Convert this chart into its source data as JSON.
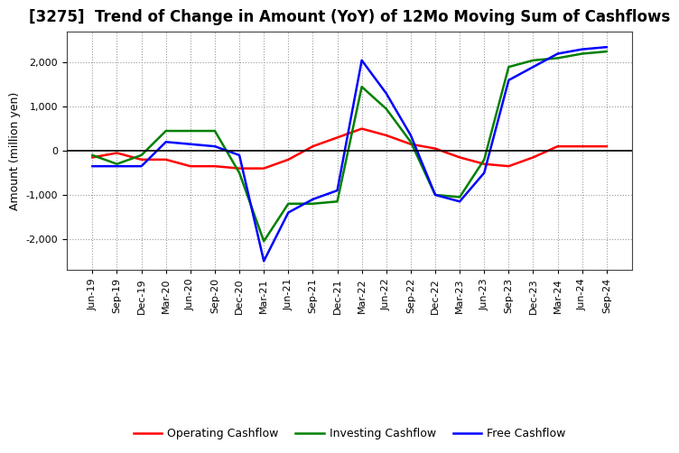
{
  "title": "[3275]  Trend of Change in Amount (YoY) of 12Mo Moving Sum of Cashflows",
  "ylabel": "Amount (million yen)",
  "x_labels": [
    "Jun-19",
    "Sep-19",
    "Dec-19",
    "Mar-20",
    "Jun-20",
    "Sep-20",
    "Dec-20",
    "Mar-21",
    "Jun-21",
    "Sep-21",
    "Dec-21",
    "Mar-22",
    "Jun-22",
    "Sep-22",
    "Dec-22",
    "Mar-23",
    "Jun-23",
    "Sep-23",
    "Dec-23",
    "Mar-24",
    "Jun-24",
    "Sep-24"
  ],
  "operating": [
    -150,
    -50,
    -200,
    -200,
    -350,
    -350,
    -400,
    -400,
    -200,
    100,
    300,
    500,
    350,
    150,
    50,
    -150,
    -300,
    -350,
    -150,
    100,
    100,
    100
  ],
  "investing": [
    -100,
    -300,
    -100,
    450,
    450,
    450,
    -500,
    -2050,
    -1200,
    -1200,
    -1150,
    1450,
    950,
    200,
    -1000,
    -1050,
    -200,
    1900,
    2050,
    2100,
    2200,
    2250
  ],
  "free": [
    -350,
    -350,
    -350,
    200,
    150,
    100,
    -100,
    -2500,
    -1400,
    -1100,
    -900,
    2050,
    1300,
    350,
    -1000,
    -1150,
    -500,
    1600,
    1900,
    2200,
    2300,
    2350
  ],
  "operating_color": "#ff0000",
  "investing_color": "#008000",
  "free_color": "#0000ff",
  "ylim": [
    -2700,
    2700
  ],
  "yticks": [
    -2000,
    -1000,
    0,
    1000,
    2000
  ],
  "background_color": "#ffffff",
  "grid_color": "#999999",
  "title_fontsize": 12,
  "axis_fontsize": 9,
  "tick_fontsize": 8,
  "legend_fontsize": 9
}
